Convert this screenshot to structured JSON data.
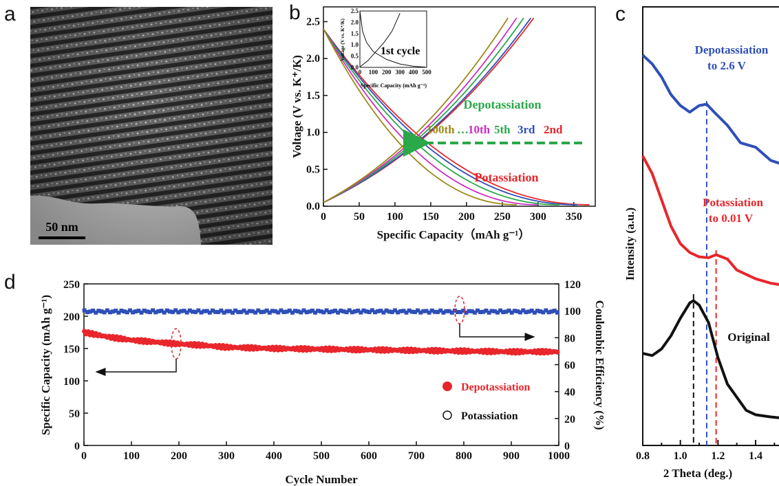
{
  "panel_labels": {
    "a": "a",
    "b": "b",
    "c": "c",
    "d": "d"
  },
  "panel_a": {
    "scale_bar_label": "50 nm"
  },
  "colors": {
    "red": "#e8262c",
    "blue": "#2f4fb8",
    "black": "#111111",
    "green": "#2aa84a",
    "olive": "#9a8a18",
    "magenta": "#cc2fc0",
    "purple": "#6a2fa8"
  },
  "chart_data": [
    {
      "id": "b",
      "type": "line",
      "xlabel": "Specific Capacity（mAh g⁻¹）",
      "ylabel": "Voltage (V vs. K⁺/K)",
      "xlim": [
        0,
        380
      ],
      "ylim": [
        0,
        2.7
      ],
      "xticks": [
        0,
        50,
        100,
        150,
        200,
        250,
        300,
        350
      ],
      "yticks": [
        0.0,
        0.5,
        1.0,
        1.5,
        2.0,
        2.5
      ],
      "annotations": [
        "Depotassiation",
        "Potassiation"
      ],
      "cycle_labels": [
        "100th",
        "…",
        "10th",
        "5th",
        "3rd",
        "2nd"
      ],
      "series": [
        {
          "name": "2nd",
          "color": "#e8262c",
          "discharge_end": 372,
          "charge_end": 294
        },
        {
          "name": "3rd",
          "color": "#2f4fb8",
          "discharge_end": 355,
          "charge_end": 290
        },
        {
          "name": "5th",
          "color": "#2aa84a",
          "discharge_end": 330,
          "charge_end": 280
        },
        {
          "name": "10th",
          "color": "#cc2fc0",
          "discharge_end": 300,
          "charge_end": 270
        },
        {
          "name": "100th",
          "color": "#9a8a18",
          "discharge_end": 270,
          "charge_end": 258
        }
      ],
      "inset": {
        "label": "1st cycle",
        "xlabel": "Specific Capacity (mAh g⁻¹)",
        "ylabel": "Voltage (V vs. K⁺/K)",
        "xlim": [
          0,
          500
        ],
        "ylim": [
          0,
          2.5
        ],
        "xticks": [
          0,
          100,
          200,
          300,
          400,
          500
        ],
        "yticks": [
          0.0,
          0.5,
          1.0,
          1.5,
          2.0,
          2.5
        ],
        "discharge": [
          [
            0,
            2.5
          ],
          [
            20,
            1.6
          ],
          [
            50,
            1.1
          ],
          [
            100,
            0.7
          ],
          [
            200,
            0.35
          ],
          [
            300,
            0.15
          ],
          [
            400,
            0.05
          ],
          [
            490,
            0.01
          ]
        ],
        "charge": [
          [
            0,
            0.02
          ],
          [
            60,
            0.3
          ],
          [
            120,
            0.7
          ],
          [
            180,
            1.1
          ],
          [
            240,
            1.6
          ],
          [
            300,
            2.4
          ]
        ]
      }
    },
    {
      "id": "c",
      "type": "line",
      "xlabel": "2 Theta (deg.)",
      "ylabel": "Intensity (a.u.)",
      "xlim": [
        0.8,
        1.55
      ],
      "xticks": [
        0.8,
        1.0,
        1.2,
        1.4
      ],
      "series": [
        {
          "name": "Depotassiation to 2.6 V",
          "label_lines": [
            "Depotassiation",
            "to 2.6 V"
          ],
          "color": "#2f4fb8",
          "peak": 1.14,
          "x": [
            0.8,
            0.85,
            0.9,
            0.95,
            1.0,
            1.05,
            1.1,
            1.14,
            1.18,
            1.25,
            1.32,
            1.4,
            1.48,
            1.55
          ],
          "y": [
            8.9,
            8.7,
            8.4,
            8.0,
            7.75,
            7.6,
            7.75,
            7.78,
            7.6,
            7.3,
            6.9,
            6.8,
            6.5,
            6.4
          ]
        },
        {
          "name": "Potassiation to 0.01 V",
          "label_lines": [
            "Potassiation",
            "to 0.01 V"
          ],
          "color": "#e8262c",
          "peak": 1.19,
          "x": [
            0.8,
            0.85,
            0.9,
            0.95,
            1.0,
            1.05,
            1.1,
            1.15,
            1.19,
            1.25,
            1.3,
            1.4,
            1.48,
            1.55
          ],
          "y": [
            6.6,
            6.2,
            5.6,
            5.0,
            4.6,
            4.4,
            4.3,
            4.28,
            4.35,
            4.25,
            4.0,
            3.8,
            3.7,
            3.65
          ]
        },
        {
          "name": "Original",
          "label_lines": [
            "Original"
          ],
          "color": "#111111",
          "peak": 1.07,
          "x": [
            0.8,
            0.85,
            0.9,
            0.95,
            1.0,
            1.05,
            1.07,
            1.1,
            1.15,
            1.2,
            1.25,
            1.3,
            1.35,
            1.4,
            1.48,
            1.55
          ],
          "y": [
            2.1,
            2.05,
            2.2,
            2.5,
            2.9,
            3.25,
            3.3,
            3.2,
            2.8,
            2.0,
            1.4,
            1.1,
            0.8,
            0.7,
            0.65,
            0.62
          ]
        }
      ]
    },
    {
      "id": "d",
      "type": "scatter",
      "xlabel": "Cycle Number",
      "ylabel": "Specific Capacity (mAh g⁻¹)",
      "y2label": "Coulombic Efficiency (%)",
      "xlim": [
        0,
        1000
      ],
      "ylim": [
        0,
        250
      ],
      "y2lim": [
        0,
        120
      ],
      "xticks": [
        0,
        100,
        200,
        300,
        400,
        500,
        600,
        700,
        800,
        900,
        1000
      ],
      "yticks": [
        0,
        50,
        100,
        150,
        200,
        250
      ],
      "y2ticks": [
        0,
        20,
        40,
        60,
        80,
        100,
        120
      ],
      "legend": [
        {
          "label": "Depotassiation",
          "marker": "filled-circle",
          "color": "#e8262c"
        },
        {
          "label": "Potassiation",
          "marker": "open-circle",
          "color": "#111111"
        }
      ],
      "series": [
        {
          "name": "Depotassiation",
          "axis": "left",
          "color": "#e8262c",
          "x": [
            1,
            50,
            100,
            150,
            200,
            250,
            300,
            400,
            500,
            600,
            700,
            800,
            900,
            1000
          ],
          "y": [
            175,
            168,
            163,
            160,
            157,
            155,
            152,
            150,
            149,
            148,
            147,
            146,
            145,
            145
          ]
        },
        {
          "name": "Coulombic Efficiency",
          "axis": "right",
          "color": "#2f4fb8",
          "x": [
            1,
            100,
            200,
            300,
            400,
            500,
            600,
            700,
            800,
            900,
            1000
          ],
          "y": [
            99.5,
            99.5,
            99.6,
            99.4,
            99.5,
            99.5,
            99.6,
            99.5,
            99.4,
            99.5,
            99.5
          ]
        }
      ]
    }
  ]
}
